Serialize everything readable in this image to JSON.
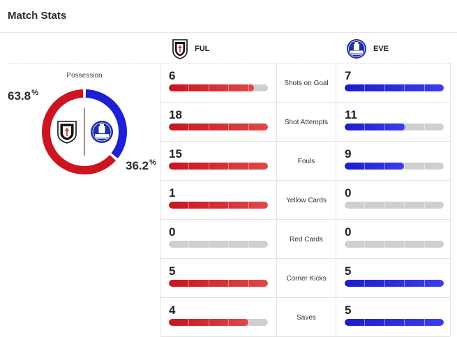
{
  "header": {
    "title": "Match Stats"
  },
  "teams": {
    "home": {
      "abbr": "FUL",
      "color": "#cc1520"
    },
    "away": {
      "abbr": "EVE",
      "color": "#1f1fd6"
    }
  },
  "possession": {
    "label": "Possession",
    "home_value": "63.8",
    "away_value": "36.2",
    "unit": "%",
    "home_fraction": 0.638,
    "away_fraction": 0.362
  },
  "stats": [
    {
      "label": "Shots on Goal",
      "home": "6",
      "away": "7",
      "home_fill": 0.86,
      "away_fill": 1.0
    },
    {
      "label": "Shot Attempts",
      "home": "18",
      "away": "11",
      "home_fill": 1.0,
      "away_fill": 0.61
    },
    {
      "label": "Fouls",
      "home": "15",
      "away": "9",
      "home_fill": 1.0,
      "away_fill": 0.6
    },
    {
      "label": "Yellow Cards",
      "home": "1",
      "away": "0",
      "home_fill": 1.0,
      "away_fill": 0.0
    },
    {
      "label": "Red Cards",
      "home": "0",
      "away": "0",
      "home_fill": 0.0,
      "away_fill": 0.0
    },
    {
      "label": "Corner Kicks",
      "home": "5",
      "away": "5",
      "home_fill": 1.0,
      "away_fill": 1.0
    },
    {
      "label": "Saves",
      "home": "4",
      "away": "5",
      "home_fill": 0.8,
      "away_fill": 1.0
    }
  ]
}
